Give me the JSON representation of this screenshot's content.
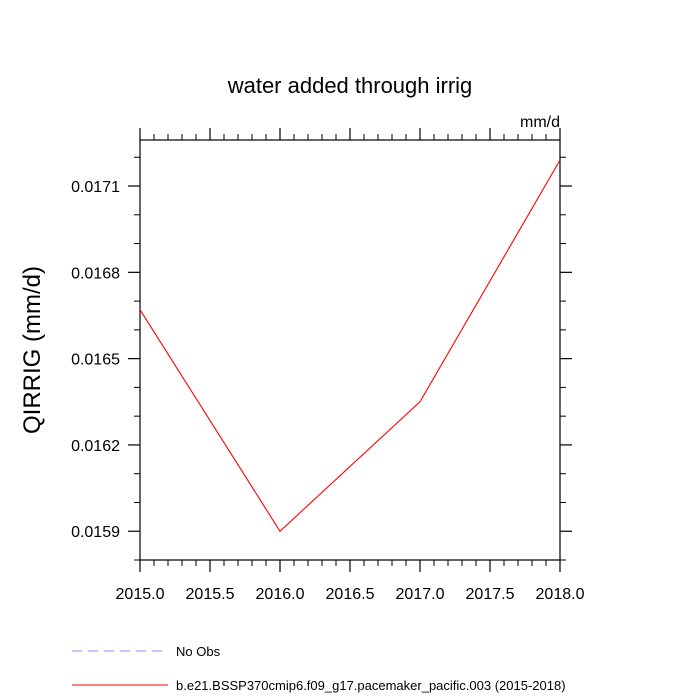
{
  "chart_data": {
    "type": "line",
    "title": "water added through irrig",
    "units_label": "mm/d",
    "xlabel": "",
    "ylabel": "QIRRIG  (mm/d)",
    "xlim": [
      2015.0,
      2018.0
    ],
    "ylim": [
      0.0158,
      0.01726
    ],
    "x_ticks": [
      2015.0,
      2015.5,
      2016.0,
      2016.5,
      2017.0,
      2017.5,
      2018.0
    ],
    "x_tick_labels": [
      "2015.0",
      "2015.5",
      "2016.0",
      "2016.5",
      "2017.0",
      "2017.5",
      "2018.0"
    ],
    "y_ticks": [
      0.0159,
      0.0162,
      0.0165,
      0.0168,
      0.0171
    ],
    "y_tick_labels": [
      "0.0159",
      "0.0162",
      "0.0165",
      "0.0168",
      "0.0171"
    ],
    "grid": false,
    "legend_position": "bottom",
    "series": [
      {
        "name": "No Obs",
        "color": "#8c8cff",
        "style": "dashed",
        "x": [],
        "y": []
      },
      {
        "name": "b.e21.BSSP370cmip6.f09_g17.pacemaker_pacific.003 (2015-2018)",
        "color": "#ff0000",
        "style": "solid",
        "x": [
          2015.0,
          2016.0,
          2017.0,
          2018.0
        ],
        "y": [
          0.01667,
          0.0159,
          0.01635,
          0.01719
        ]
      }
    ]
  }
}
